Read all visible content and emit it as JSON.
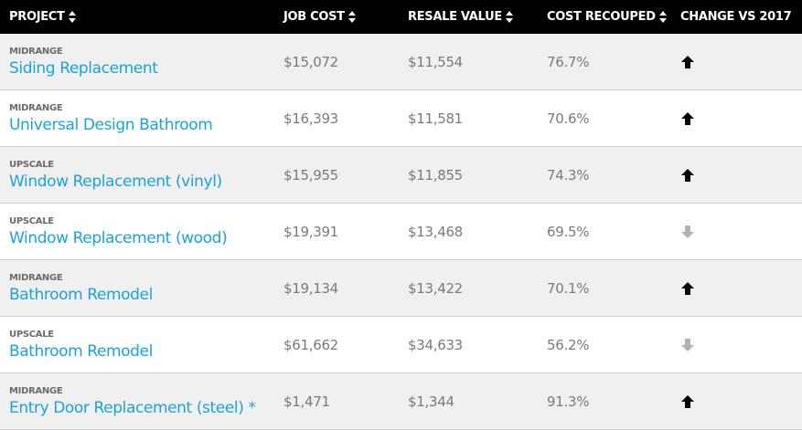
{
  "table": {
    "headers": {
      "project": "PROJECT",
      "job_cost": "JOB COST",
      "resale_value": "RESALE VALUE",
      "cost_recouped": "COST RECOUPED",
      "change": "CHANGE VS 2017"
    },
    "colors": {
      "header_bg": "#000000",
      "link": "#1aa3d9",
      "arrow_up": "#000000",
      "arrow_down": "#b3b3b3"
    },
    "rows": [
      {
        "tier": "MIDRANGE",
        "name": "Siding Replacement",
        "job_cost": "$15,072",
        "resale_value": "$11,554",
        "cost_recouped": "76.7%",
        "change": "up"
      },
      {
        "tier": "MIDRANGE",
        "name": "Universal Design Bathroom",
        "job_cost": "$16,393",
        "resale_value": "$11,581",
        "cost_recouped": "70.6%",
        "change": "up"
      },
      {
        "tier": "UPSCALE",
        "name": "Window Replacement (vinyl)",
        "job_cost": "$15,955",
        "resale_value": "$11,855",
        "cost_recouped": "74.3%",
        "change": "up"
      },
      {
        "tier": "UPSCALE",
        "name": "Window Replacement (wood)",
        "job_cost": "$19,391",
        "resale_value": "$13,468",
        "cost_recouped": "69.5%",
        "change": "down"
      },
      {
        "tier": "MIDRANGE",
        "name": "Bathroom Remodel",
        "job_cost": "$19,134",
        "resale_value": "$13,422",
        "cost_recouped": "70.1%",
        "change": "up"
      },
      {
        "tier": "UPSCALE",
        "name": "Bathroom Remodel",
        "job_cost": "$61,662",
        "resale_value": "$34,633",
        "cost_recouped": "56.2%",
        "change": "down"
      },
      {
        "tier": "MIDRANGE",
        "name": "Entry Door Replacement (steel) *",
        "job_cost": "$1,471",
        "resale_value": "$1,344",
        "cost_recouped": "91.3%",
        "change": "up"
      }
    ]
  }
}
